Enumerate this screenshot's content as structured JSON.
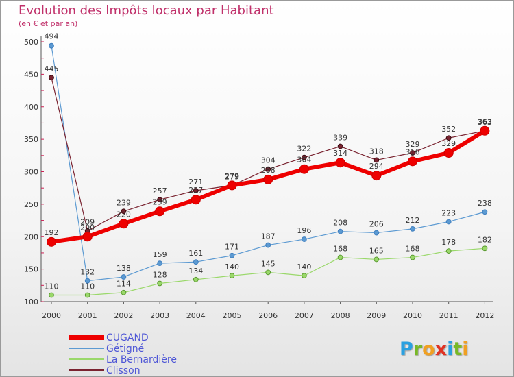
{
  "chart_data": {
    "type": "line",
    "title": "Evolution des Impôts locaux par Habitant",
    "subtitle": "(en € et par an)",
    "categories": [
      "2000",
      "2001",
      "2002",
      "2003",
      "2004",
      "2005",
      "2006",
      "2007",
      "2008",
      "2009",
      "2010",
      "2011",
      "2012"
    ],
    "y_ticks": [
      "100",
      "150",
      "200",
      "250",
      "300",
      "350",
      "400",
      "450",
      "500"
    ],
    "ylim": [
      100,
      500
    ],
    "grid": false,
    "legend_position": "bottom-left",
    "series": [
      {
        "name": "CUGAND",
        "color": "#ee0000",
        "values": [
          192,
          200,
          220,
          239,
          257,
          279,
          288,
          304,
          314,
          294,
          316,
          329,
          363
        ]
      },
      {
        "name": "Gétigné",
        "color": "#5c9ad2",
        "values": [
          494,
          132,
          138,
          159,
          161,
          171,
          187,
          196,
          208,
          206,
          212,
          223,
          238
        ]
      },
      {
        "name": "La Bernardière",
        "color": "#9ad86a",
        "values": [
          110,
          110,
          114,
          128,
          134,
          140,
          145,
          140,
          168,
          165,
          168,
          178,
          182
        ]
      },
      {
        "name": "Clisson",
        "color": "#7a2330",
        "values": [
          445,
          209,
          239,
          257,
          271,
          279,
          304,
          322,
          339,
          318,
          329,
          352,
          363
        ]
      }
    ],
    "logo": "Proxiti"
  }
}
